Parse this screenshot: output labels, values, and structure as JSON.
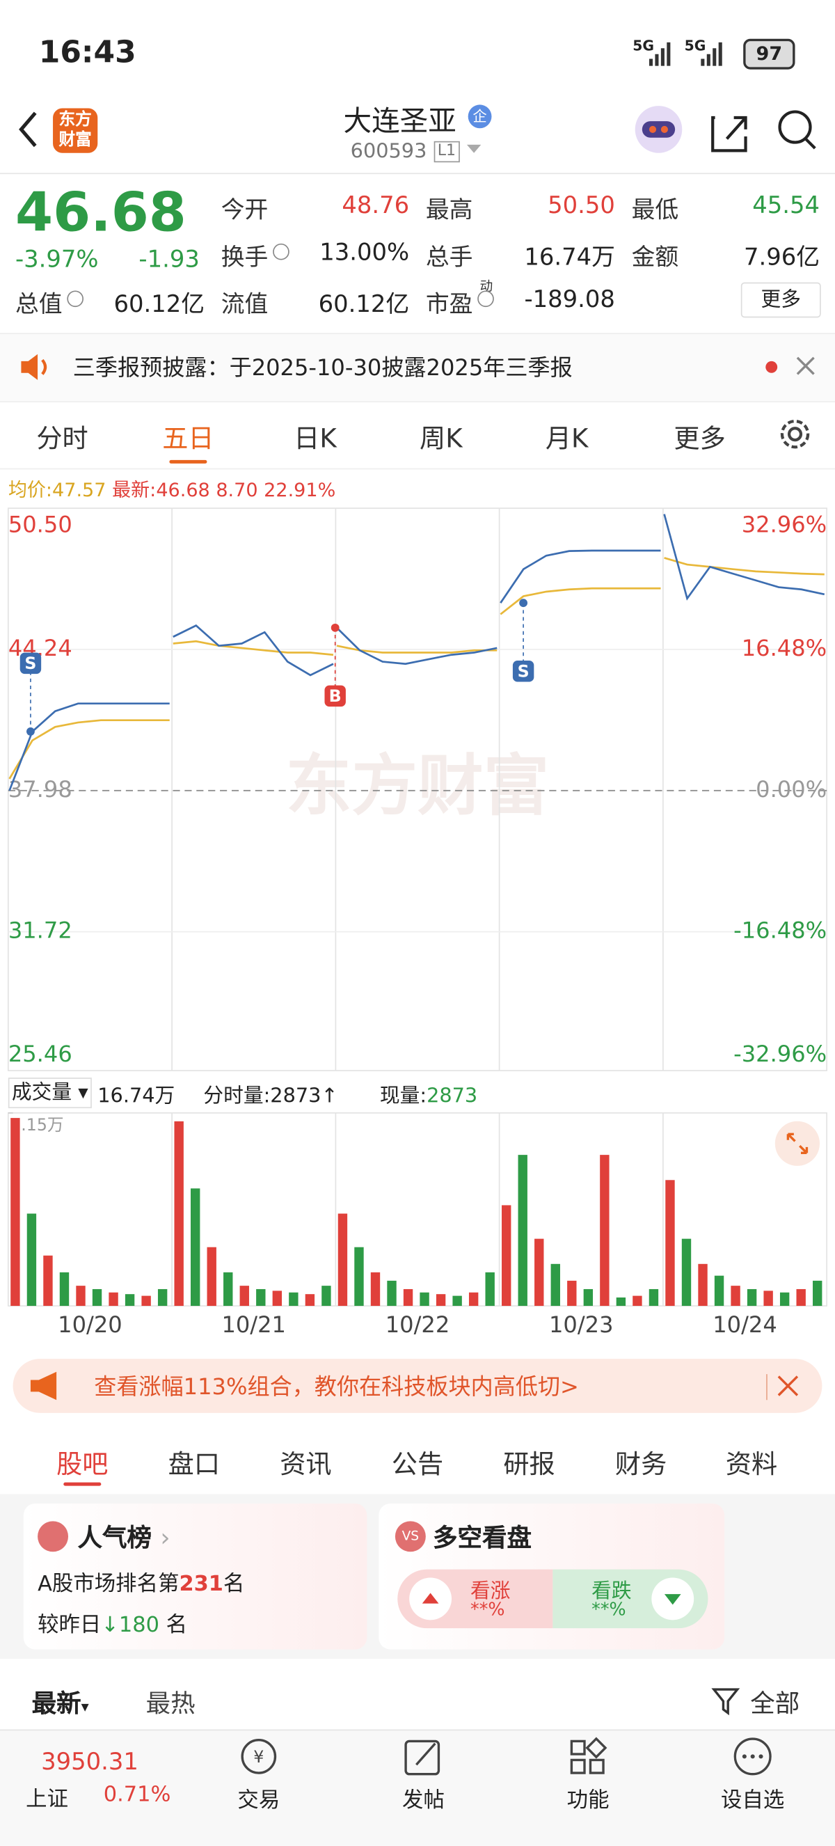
{
  "status_bar": {
    "time": "16:43",
    "network": [
      "5G",
      "5G"
    ],
    "battery": "97"
  },
  "header": {
    "logo": "东方财富",
    "title": "大连圣亚",
    "badge": "企",
    "code": "600593",
    "level": "L1"
  },
  "quote": {
    "price": "46.68",
    "change_pct": "-3.97%",
    "change": "-1.93",
    "fields": [
      {
        "label": "今开",
        "value": "48.76",
        "color": "#e0403a"
      },
      {
        "label": "最高",
        "value": "50.50",
        "color": "#e0403a"
      },
      {
        "label": "最低",
        "value": "45.54",
        "color": "#2e9b46"
      },
      {
        "label": "换手",
        "value": "13.00%"
      },
      {
        "label": "总手",
        "value": "16.74万"
      },
      {
        "label": "金额",
        "value": "7.96亿"
      },
      {
        "label": "总值",
        "value": "60.12亿"
      },
      {
        "label": "流值",
        "value": "60.12亿"
      },
      {
        "label": "市盈",
        "sup": "动",
        "value": "-189.08"
      }
    ],
    "more": "更多"
  },
  "notice": {
    "text": "三季报预披露：于2025-10-30披露2025年三季报"
  },
  "tabs": {
    "items": [
      "分时",
      "五日",
      "日K",
      "周K",
      "月K",
      "更多"
    ],
    "active": 1
  },
  "price_chart": {
    "avg_label": "均价:",
    "avg": "47.57",
    "latest_label": "最新:",
    "latest": "46.68",
    "change": "8.70",
    "change_pct": "22.91%",
    "watermark": "东方财富",
    "ylim": [
      25.46,
      50.5
    ],
    "yticks": [
      {
        "value": 50.5,
        "label": "50.50"
      },
      {
        "value": 44.24,
        "label": "44.24"
      },
      {
        "value": 37.98,
        "label": "37.98"
      },
      {
        "value": 31.72,
        "label": "31.72"
      },
      {
        "value": 25.46,
        "label": "25.46"
      }
    ],
    "right_ticks": [
      "32.96%",
      "16.48%",
      "0.00%",
      "-16.48%",
      "-32.96%"
    ],
    "price": [
      37.98,
      40.6,
      41.5,
      41.84,
      41.84,
      41.84,
      41.84,
      41.84,
      44.8,
      45.3,
      44.4,
      44.5,
      45.0,
      43.7,
      43.1,
      43.6,
      45.2,
      44.2,
      43.7,
      43.6,
      43.8,
      44.0,
      44.1,
      44.3,
      46.3,
      47.8,
      48.4,
      48.6,
      48.62,
      48.62,
      48.62,
      48.62,
      50.24,
      46.5,
      47.9,
      47.6,
      47.3,
      47.0,
      46.9,
      46.68
    ],
    "avg_line": [
      38.5,
      40.2,
      40.8,
      41.0,
      41.1,
      41.1,
      41.1,
      41.1,
      44.5,
      44.6,
      44.4,
      44.3,
      44.2,
      44.1,
      44.1,
      44.0,
      44.4,
      44.2,
      44.1,
      44.1,
      44.1,
      44.1,
      44.2,
      44.2,
      45.8,
      46.6,
      46.8,
      46.9,
      46.95,
      46.95,
      46.95,
      46.95,
      48.3,
      48.0,
      47.9,
      47.8,
      47.7,
      47.65,
      47.6,
      47.57
    ],
    "trades": [
      "S",
      "B",
      "S"
    ]
  },
  "volume_chart": {
    "label": "成交量",
    "total": "16.74万",
    "tick_vol_label": "分时量:",
    "tick_vol": "2873↑",
    "cur_vol_label": "现量:",
    "cur_vol": "2873",
    "ylim": [
      0,
      1.15
    ],
    "yticks": [
      {
        "value": 1.15,
        "label": "1.15万"
      }
    ],
    "values": [
      1.12,
      0.55,
      0.3,
      0.2,
      0.12,
      0.1,
      0.08,
      0.07,
      0.06,
      0.1,
      1.1,
      0.7,
      0.35,
      0.2,
      0.12,
      0.1,
      0.09,
      0.08,
      0.07,
      0.12,
      0.55,
      0.35,
      0.2,
      0.15,
      0.1,
      0.08,
      0.07,
      0.06,
      0.08,
      0.2,
      0.6,
      0.9,
      0.4,
      0.25,
      0.15,
      0.1,
      0.9,
      0.05,
      0.06,
      0.1,
      0.75,
      0.4,
      0.25,
      0.18,
      0.12,
      0.1,
      0.09,
      0.08,
      0.1,
      0.15
    ],
    "dates": [
      "10/20",
      "10/21",
      "10/22",
      "10/23",
      "10/24"
    ]
  },
  "ad": {
    "text": "查看涨幅113%组合，教你在科技板块内高低切>"
  },
  "sub_tabs": {
    "items": [
      "股吧",
      "盘口",
      "资讯",
      "公告",
      "研报",
      "财务",
      "资料"
    ],
    "active": 0
  },
  "popularity": {
    "title": "人气榜",
    "rank_prefix": "A股市场排名第",
    "rank": "231",
    "rank_suffix": "名",
    "change_prefix": "较昨日",
    "change": "180",
    "change_suffix": "名"
  },
  "sentiment": {
    "title": "多空看盘",
    "bull": "看涨",
    "bull_pct": "**%",
    "bear": "看跌",
    "bear_pct": "**%"
  },
  "sort": {
    "latest": "最新",
    "hot": "最热",
    "filter": "全部"
  },
  "bottom_bar": {
    "index_value": "3950.31",
    "index_name": "上证",
    "index_change": "0.71%",
    "items": [
      "交易",
      "发帖",
      "功能",
      "设自选"
    ]
  }
}
